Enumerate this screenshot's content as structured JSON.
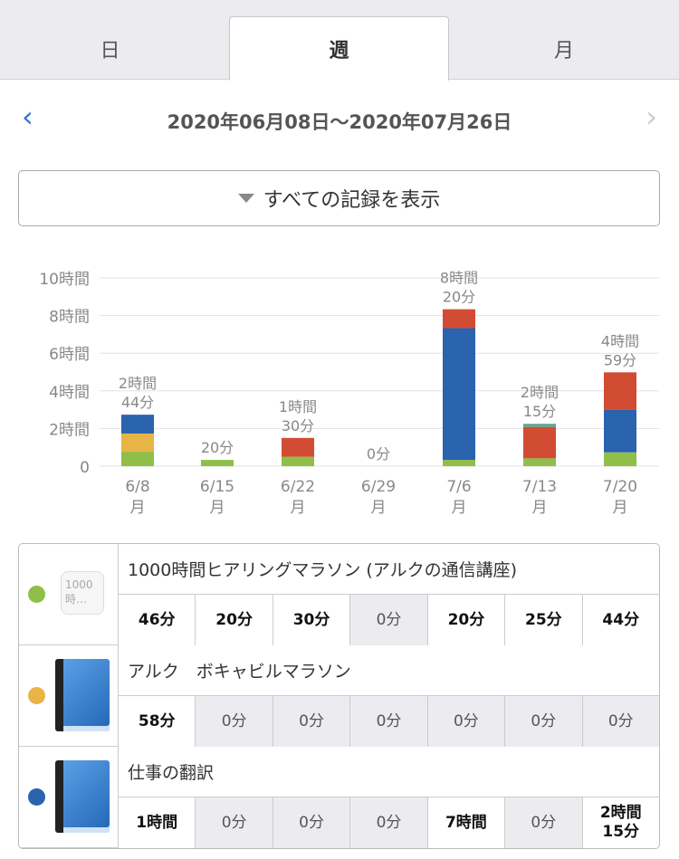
{
  "tabs": [
    {
      "label": "日"
    },
    {
      "label": "週",
      "selected": true
    },
    {
      "label": "月"
    }
  ],
  "nav": {
    "range": "2020年06月08日〜2020年07月26日",
    "prev_icon": "chevron-left-icon",
    "next_icon": "chevron-right-icon"
  },
  "filter": {
    "label": "すべての記録を表示"
  },
  "chart_data": {
    "type": "bar",
    "stacked": true,
    "categories": [
      "6/8",
      "6/15",
      "6/22",
      "6/29",
      "7/6",
      "7/13",
      "7/20"
    ],
    "category_sub": "月",
    "yticks": [
      "0",
      "2時間",
      "4時間",
      "6時間",
      "8時間",
      "10時間"
    ],
    "ylim": [
      0,
      10
    ],
    "yunit": "hours",
    "totals": [
      "2時間\n44分",
      "20分",
      "1時間\n30分",
      "0分",
      "8時間\n20分",
      "2時間\n15分",
      "4時間\n59分"
    ],
    "series": [
      {
        "name": "1000時間ヒアリングマラソン",
        "color": "#8fbf48",
        "values_min": [
          46,
          20,
          30,
          0,
          20,
          25,
          44
        ]
      },
      {
        "name": "アルク ボキャビルマラソン",
        "color": "#e8b445",
        "values_min": [
          58,
          0,
          0,
          0,
          0,
          0,
          0
        ]
      },
      {
        "name": "仕事の翻訳",
        "color": "#2a63ae",
        "values_min": [
          60,
          0,
          0,
          0,
          420,
          0,
          135
        ]
      },
      {
        "name": "",
        "color": "#d14c33",
        "values_min": [
          0,
          0,
          60,
          0,
          60,
          100,
          120
        ]
      },
      {
        "name": "",
        "color": "#5ea792",
        "values_min": [
          0,
          0,
          0,
          0,
          0,
          10,
          0
        ]
      }
    ]
  },
  "table": [
    {
      "title": "1000時間ヒアリングマラソン (アルクの通信講座)",
      "color": "#8fbf48",
      "thumb": "1000時…",
      "icon": "thumbnail",
      "cells": [
        "46分",
        "20分",
        "30分",
        "0分",
        "20分",
        "25分",
        "44分"
      ]
    },
    {
      "title": "アルク　ボキャビルマラソン",
      "color": "#e8b445",
      "icon": "book-icon",
      "cells": [
        "58分",
        "0分",
        "0分",
        "0分",
        "0分",
        "0分",
        "0分"
      ]
    },
    {
      "title": "仕事の翻訳",
      "color": "#2a63ae",
      "icon": "book-icon",
      "cells": [
        "1時間",
        "0分",
        "0分",
        "0分",
        "7時間",
        "0分",
        "2時間\n15分"
      ]
    }
  ]
}
